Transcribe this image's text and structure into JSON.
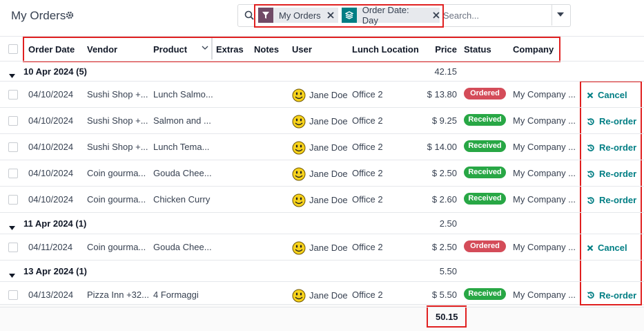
{
  "header": {
    "title": "My Orders",
    "facets": [
      "My Orders",
      "Order Date: Day"
    ],
    "search_placeholder": "Search..."
  },
  "table": {
    "columns": [
      "Order Date",
      "Vendor",
      "Product",
      "Extras",
      "Notes",
      "User",
      "Lunch Location",
      "Price",
      "Status",
      "Company"
    ],
    "groups": [
      {
        "label": "10 Apr 2024 (5)",
        "total": "42.15",
        "rows": [
          {
            "date": "04/10/2024",
            "vendor": "Sushi Shop +...",
            "product": "Lunch Salmo...",
            "user": "Jane Doe",
            "location": "Office 2",
            "price": "$ 13.80",
            "status": "Ordered",
            "company": "My Company ...",
            "action": "Cancel"
          },
          {
            "date": "04/10/2024",
            "vendor": "Sushi Shop +...",
            "product": "Salmon and ...",
            "user": "Jane Doe",
            "location": "Office 2",
            "price": "$ 9.25",
            "status": "Received",
            "company": "My Company ...",
            "action": "Re-order"
          },
          {
            "date": "04/10/2024",
            "vendor": "Sushi Shop +...",
            "product": "Lunch Tema...",
            "user": "Jane Doe",
            "location": "Office 2",
            "price": "$ 14.00",
            "status": "Received",
            "company": "My Company ...",
            "action": "Re-order"
          },
          {
            "date": "04/10/2024",
            "vendor": "Coin gourma...",
            "product": "Gouda Chee...",
            "user": "Jane Doe",
            "location": "Office 2",
            "price": "$ 2.50",
            "status": "Received",
            "company": "My Company ...",
            "action": "Re-order"
          },
          {
            "date": "04/10/2024",
            "vendor": "Coin gourma...",
            "product": "Chicken Curry",
            "user": "Jane Doe",
            "location": "Office 2",
            "price": "$ 2.60",
            "status": "Received",
            "company": "My Company ...",
            "action": "Re-order"
          }
        ]
      },
      {
        "label": "11 Apr 2024 (1)",
        "total": "2.50",
        "rows": [
          {
            "date": "04/11/2024",
            "vendor": "Coin gourma...",
            "product": "Gouda Chee...",
            "user": "Jane Doe",
            "location": "Office 2",
            "price": "$ 2.50",
            "status": "Ordered",
            "company": "My Company ...",
            "action": "Cancel"
          }
        ]
      },
      {
        "label": "13 Apr 2024 (1)",
        "total": "5.50",
        "rows": [
          {
            "date": "04/13/2024",
            "vendor": "Pizza Inn +32...",
            "product": "4 Formaggi",
            "user": "Jane Doe",
            "location": "Office 2",
            "price": "$ 5.50",
            "status": "Received",
            "company": "My Company ...",
            "action": "Re-order"
          }
        ]
      }
    ],
    "grand_total": "50.15"
  }
}
